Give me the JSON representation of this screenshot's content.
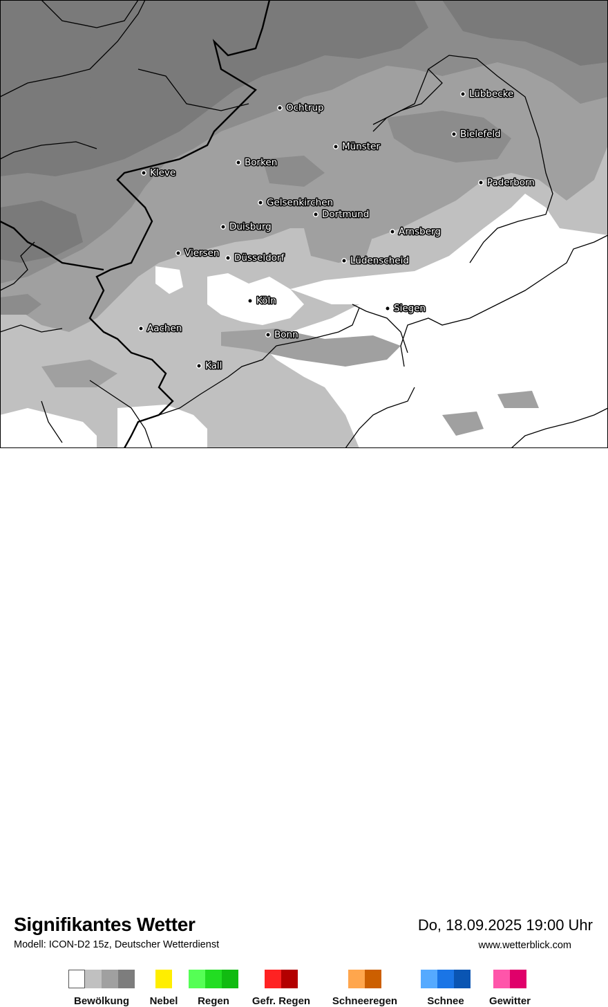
{
  "map": {
    "cities": [
      {
        "name": "Lübbecke"
      },
      {
        "name": "Ochtrup"
      },
      {
        "name": "Bielefeld"
      },
      {
        "name": "Münster"
      },
      {
        "name": "Borken"
      },
      {
        "name": "Kleve"
      },
      {
        "name": "Paderborn"
      },
      {
        "name": "Gelsenkirchen"
      },
      {
        "name": "Dortmund"
      },
      {
        "name": "Duisburg"
      },
      {
        "name": "Arnsberg"
      },
      {
        "name": "Viersen"
      },
      {
        "name": "Düsseldorf"
      },
      {
        "name": "Lüdenscheid"
      },
      {
        "name": "Köln"
      },
      {
        "name": "Siegen"
      },
      {
        "name": "Aachen"
      },
      {
        "name": "Bonn"
      },
      {
        "name": "Kall"
      }
    ],
    "colors": {
      "cloud_overcast": "#7a7a7a",
      "cloud_heavy": "#8c8c8c",
      "cloud_medium": "#a0a0a0",
      "cloud_light": "#c0c0c0",
      "clear": "#ffffff"
    }
  },
  "header": {
    "title": "Signifikantes Wetter",
    "model": "Modell: ICON-D2 15z, Deutscher Wetterdienst",
    "datetime": "Do, 18.09.2025 19:00 Uhr",
    "website": "www.wetterblick.com"
  },
  "legend": [
    {
      "label": "Bewölkung",
      "colors": [
        "#ffffff",
        "#c0c0c0",
        "#a0a0a0",
        "#7d7d7d"
      ]
    },
    {
      "label": "Nebel",
      "colors": [
        "#ffee00"
      ]
    },
    {
      "label": "Regen",
      "colors": [
        "#55ff55",
        "#22dd22",
        "#11bb11"
      ]
    },
    {
      "label": "Gefr. Regen",
      "colors": [
        "#ff2222",
        "#b30000"
      ]
    },
    {
      "label": "Schneeregen",
      "colors": [
        "#ffa64d",
        "#cc5f00"
      ]
    },
    {
      "label": "Schnee",
      "colors": [
        "#55aaff",
        "#1a75e6",
        "#0a55b3"
      ]
    },
    {
      "label": "Gewitter",
      "colors": [
        "#ff55aa",
        "#e0006a"
      ]
    }
  ]
}
